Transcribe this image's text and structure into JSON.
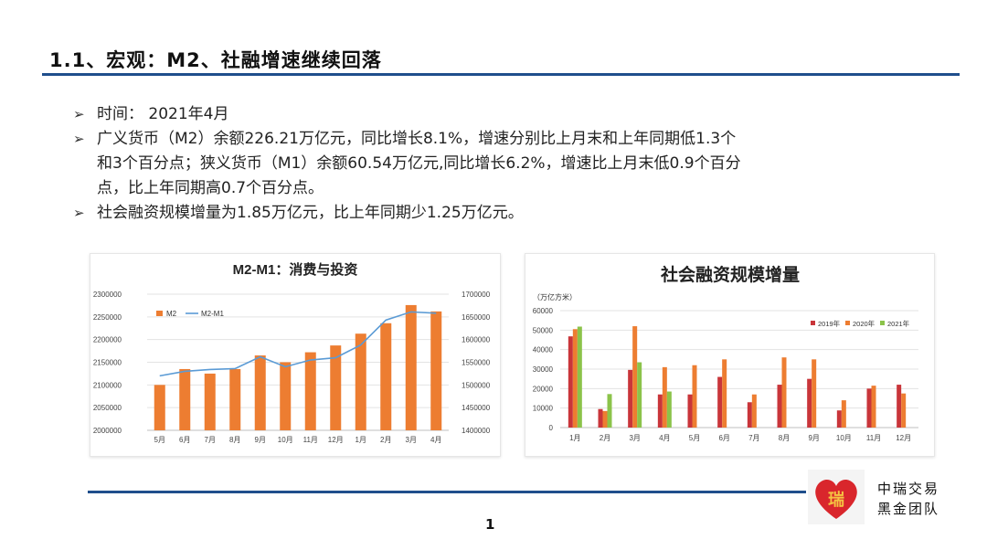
{
  "header": {
    "title": "1.1、宏观：M2、社融增速继续回落"
  },
  "bullets": [
    "时间： 2021年4月",
    "广义货币（M2）余额226.21万亿元，同比增长8.1%，增速分别比上月末和上年同期低1.3个",
    "和3个百分点；狭义货币（M1）余额60.54万亿元,同比增长6.2%，增速比上月末低0.9个百分",
    "点，比上年同期高0.7个百分点。",
    "社会融资规模增量为1.85万亿元，比上年同期少1.25万亿元。"
  ],
  "footer": {
    "page_number": "1",
    "brand_line1": "中瑞交易",
    "brand_line2": "黑金团队",
    "logo_char": "瑞"
  },
  "colors": {
    "accent": "#1f4e8c",
    "orange": "#ed7d31",
    "line_blue": "#5b9bd5",
    "red": "#c9353a",
    "green": "#8bc34a"
  },
  "chart_data": [
    {
      "type": "bar",
      "title": "M2-M1：消费与投资",
      "categories": [
        "5月",
        "6月",
        "7月",
        "8月",
        "9月",
        "10月",
        "11月",
        "12月",
        "1月",
        "2月",
        "3月",
        "4月"
      ],
      "series": [
        {
          "name": "M2",
          "type": "bar",
          "axis": "left",
          "values": [
            2100000,
            2135000,
            2125000,
            2135000,
            2165000,
            2150000,
            2172000,
            2187000,
            2213000,
            2236000,
            2276000,
            2262000
          ]
        },
        {
          "name": "M2-M1",
          "type": "line",
          "axis": "right",
          "values": [
            1520000,
            1530000,
            1534000,
            1536000,
            1562000,
            1540000,
            1555000,
            1560000,
            1588000,
            1643000,
            1661000,
            1658000
          ]
        }
      ],
      "y_left": {
        "min": 2000000,
        "max": 2300000,
        "ticks": [
          "2000000",
          "2050000",
          "2100000",
          "2150000",
          "2200000",
          "2250000",
          "2300000"
        ]
      },
      "y_right": {
        "min": 1400000,
        "max": 1700000,
        "ticks": [
          "1400000",
          "1450000",
          "1500000",
          "1550000",
          "1600000",
          "1650000",
          "1700000"
        ]
      },
      "legend": "top-left"
    },
    {
      "type": "bar",
      "title": "社会融资规模增量",
      "unit_label": "（万亿方米）",
      "categories": [
        "1月",
        "2月",
        "3月",
        "4月",
        "5月",
        "6月",
        "7月",
        "8月",
        "9月",
        "10月",
        "11月",
        "12月"
      ],
      "series": [
        {
          "name": "2019年",
          "color": "#c9353a",
          "values": [
            46800,
            9500,
            29600,
            17000,
            17000,
            26000,
            13000,
            22000,
            25000,
            8800,
            20000,
            22000
          ]
        },
        {
          "name": "2020年",
          "color": "#ed7d31",
          "values": [
            50500,
            8500,
            52000,
            31000,
            32000,
            35000,
            17000,
            36000,
            35000,
            14000,
            21500,
            17500
          ]
        },
        {
          "name": "2021年",
          "color": "#8bc34a",
          "values": [
            51800,
            17200,
            33500,
            18500,
            null,
            null,
            null,
            null,
            null,
            null,
            null,
            null
          ]
        }
      ],
      "y": {
        "min": 0,
        "max": 60000,
        "ticks": [
          "0",
          "10000",
          "20000",
          "30000",
          "40000",
          "50000",
          "60000"
        ]
      },
      "legend": "top-right"
    }
  ]
}
